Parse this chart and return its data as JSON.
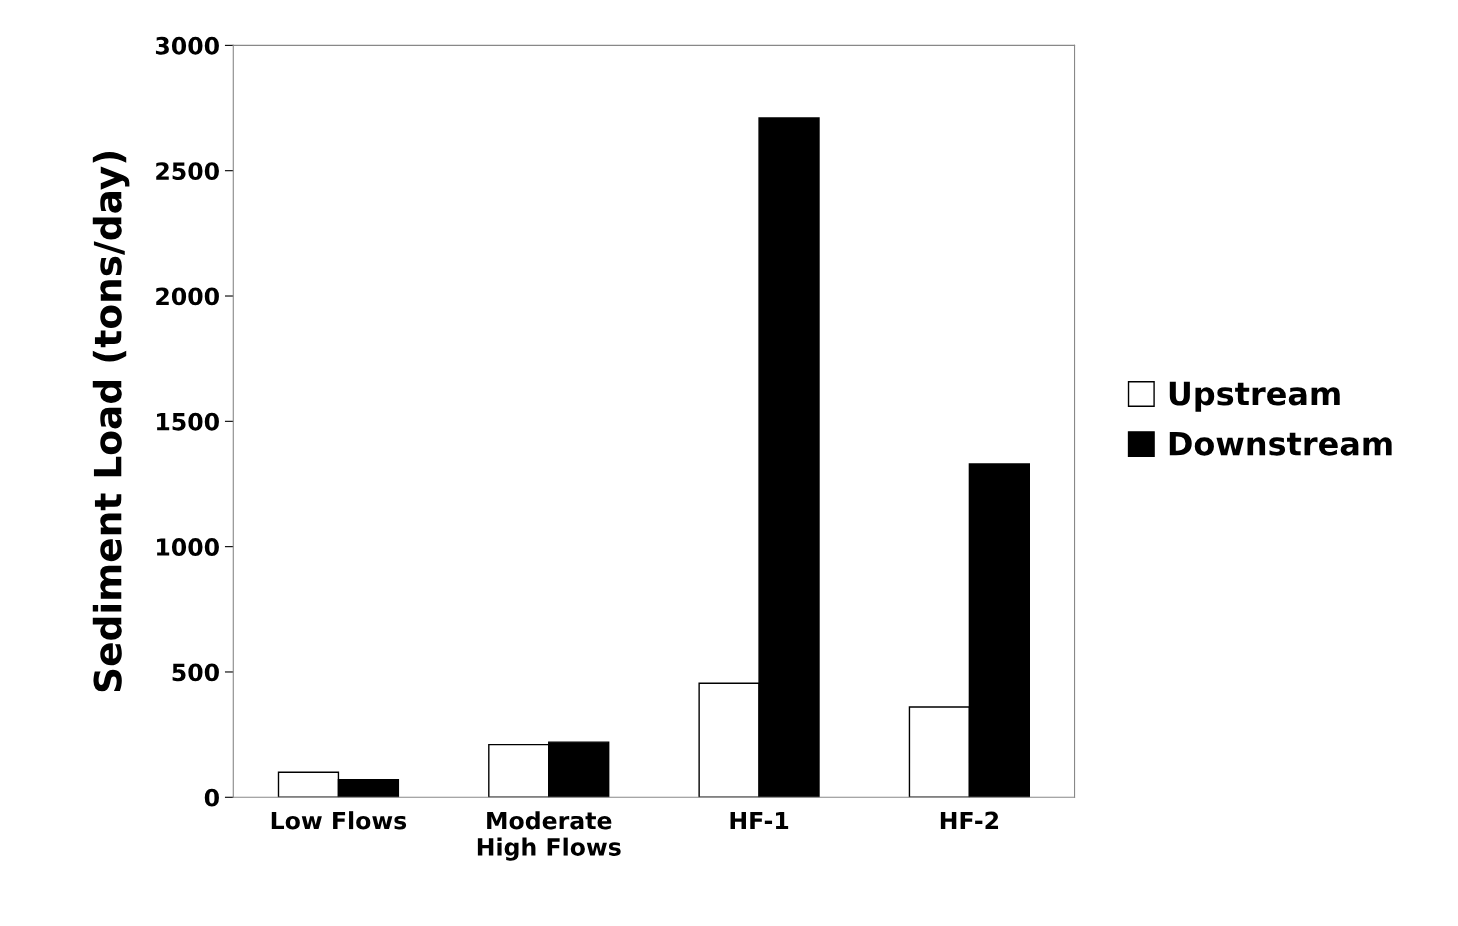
{
  "chart_data": {
    "type": "bar",
    "ylabel": "Sediment Load (tons/day)",
    "categories": [
      "Low Flows",
      "Moderate\nHigh Flows",
      "HF-1",
      "HF-2"
    ],
    "series": [
      {
        "name": "Upstream",
        "color": "#ffffff",
        "values": [
          100,
          210,
          455,
          360
        ]
      },
      {
        "name": "Downstream",
        "color": "#000000",
        "values": [
          70,
          220,
          2710,
          1330
        ]
      }
    ],
    "ylim": [
      0,
      3000
    ],
    "yticks": [
      0,
      500,
      1000,
      1500,
      2000,
      2500,
      3000
    ],
    "grid": false,
    "legend": "right"
  }
}
